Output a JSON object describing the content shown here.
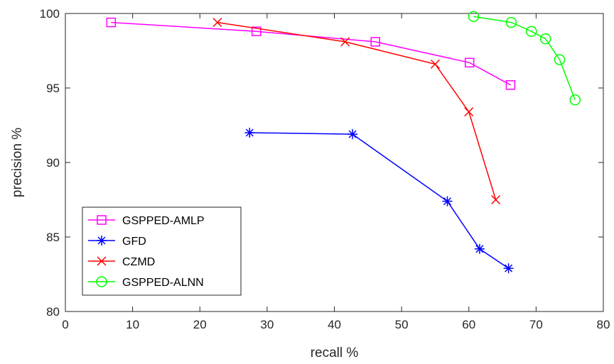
{
  "chart_data": {
    "type": "line",
    "title": "",
    "xlabel": "recall %",
    "ylabel": "precision %",
    "xlim": [
      0,
      80
    ],
    "ylim": [
      80,
      100
    ],
    "xticks": [
      0,
      10,
      20,
      30,
      40,
      50,
      60,
      70,
      80
    ],
    "yticks": [
      80,
      85,
      90,
      95,
      100
    ],
    "grid": false,
    "legend_position": "bottom-left",
    "series": [
      {
        "name": "GSPPED-AMLP",
        "color": "#ff00ff",
        "marker": "square",
        "points": [
          [
            6.8,
            99.4
          ],
          [
            28.4,
            98.8
          ],
          [
            46.1,
            98.1
          ],
          [
            60.1,
            96.7
          ],
          [
            66.2,
            95.2
          ]
        ]
      },
      {
        "name": "GFD",
        "color": "#0000ff",
        "marker": "asterisk",
        "points": [
          [
            27.4,
            92.0
          ],
          [
            42.7,
            91.9
          ],
          [
            56.8,
            87.4
          ],
          [
            61.6,
            84.2
          ],
          [
            65.9,
            82.9
          ]
        ]
      },
      {
        "name": "CZMD",
        "color": "#ff0000",
        "marker": "x",
        "points": [
          [
            22.6,
            99.4
          ],
          [
            41.6,
            98.1
          ],
          [
            55.0,
            96.6
          ],
          [
            60.0,
            93.4
          ],
          [
            64.0,
            87.5
          ]
        ]
      },
      {
        "name": "GSPPED-ALNN",
        "color": "#00ff00",
        "marker": "circle",
        "points": [
          [
            60.7,
            99.8
          ],
          [
            66.3,
            99.4
          ],
          [
            69.3,
            98.8
          ],
          [
            71.4,
            98.3
          ],
          [
            73.5,
            96.9
          ],
          [
            75.8,
            94.2
          ]
        ]
      }
    ]
  }
}
